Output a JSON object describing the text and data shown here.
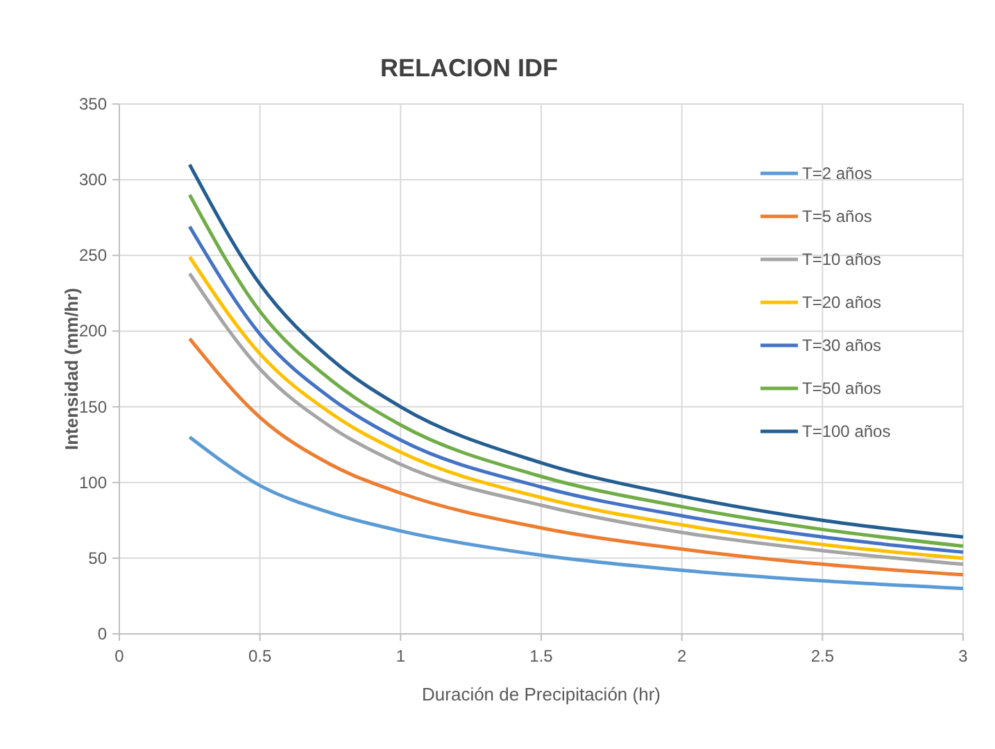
{
  "chart_data": {
    "type": "line",
    "title": "RELACION IDF",
    "xlabel": "Duración de Precipitación (hr)",
    "ylabel": "Intensidad (mm/hr)",
    "x": [
      0.25,
      0.5,
      0.75,
      1,
      1.5,
      2,
      2.5,
      3
    ],
    "series": [
      {
        "name": "T=2 años",
        "color": "#5b9bd5",
        "values": [
          130,
          98,
          80,
          68,
          52,
          42,
          35,
          30
        ]
      },
      {
        "name": "T=5 años",
        "color": "#ed7d31",
        "values": [
          195,
          143,
          112,
          93,
          70,
          56,
          46,
          39
        ]
      },
      {
        "name": "T=10 años",
        "color": "#a5a5a5",
        "values": [
          238,
          175,
          137,
          112,
          85,
          67,
          55,
          46
        ]
      },
      {
        "name": "T=20 años",
        "color": "#ffc000",
        "values": [
          249,
          185,
          146,
          120,
          90,
          72,
          59,
          50
        ]
      },
      {
        "name": "T=30 años",
        "color": "#4472c4",
        "values": [
          269,
          198,
          156,
          128,
          97,
          78,
          64,
          54
        ]
      },
      {
        "name": "T=50 años",
        "color": "#70ad47",
        "values": [
          290,
          213,
          168,
          138,
          104,
          84,
          69,
          58
        ]
      },
      {
        "name": "T=100 años",
        "color": "#255e91",
        "values": [
          310,
          231,
          182,
          150,
          113,
          91,
          75,
          64
        ]
      }
    ],
    "xlim": [
      0,
      3
    ],
    "xticks": [
      0,
      0.5,
      1,
      1.5,
      2,
      2.5,
      3
    ],
    "ylim": [
      0,
      350
    ],
    "yticks": [
      0,
      50,
      100,
      150,
      200,
      250,
      300,
      350
    ],
    "grid": true,
    "legend": "top right",
    "marker": "none",
    "line_style": "solid"
  }
}
